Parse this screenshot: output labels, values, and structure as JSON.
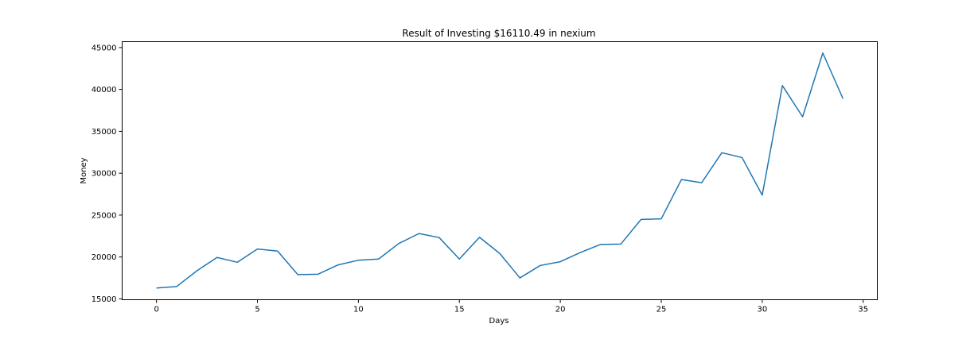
{
  "chart_data": {
    "type": "line",
    "title": "Result of Investing $16110.49 in nexium",
    "xlabel": "Days",
    "ylabel": "Money",
    "xlim": [
      -1.7,
      35.7
    ],
    "ylim": [
      14900,
      45700
    ],
    "xticks": [
      0,
      5,
      10,
      15,
      20,
      25,
      30,
      35
    ],
    "yticks": [
      15000,
      20000,
      25000,
      30000,
      35000,
      40000,
      45000
    ],
    "grid": false,
    "line_color": "#1f77b4",
    "series": [
      {
        "x": [
          0,
          1,
          2,
          3,
          4,
          5,
          6,
          7,
          8,
          9,
          10,
          11,
          12,
          13,
          14,
          15,
          16,
          17,
          18,
          19,
          20,
          21,
          22,
          23,
          24,
          25,
          26,
          27,
          28,
          29,
          30,
          31,
          32,
          33,
          34
        ],
        "values": [
          16300,
          16480,
          18350,
          19950,
          19370,
          20950,
          20700,
          17900,
          17950,
          19060,
          19620,
          19760,
          21610,
          22800,
          22320,
          19760,
          22350,
          20420,
          17500,
          18980,
          19440,
          20540,
          21500,
          21550,
          24480,
          24560,
          29250,
          28870,
          32450,
          31870,
          27390,
          40460,
          36730,
          44350,
          38900
        ]
      }
    ]
  }
}
